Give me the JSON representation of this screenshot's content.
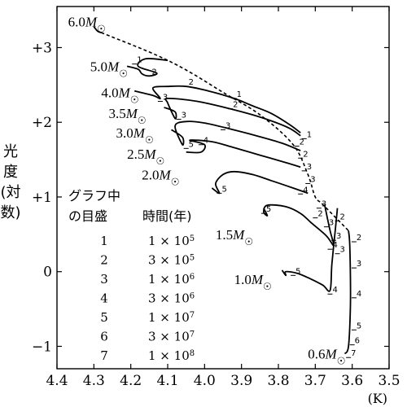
{
  "chart_data": {
    "type": "line",
    "title": "",
    "xlabel": "(K)",
    "ylabel": [
      "光",
      "度",
      "(対",
      "数)"
    ],
    "x_axis": {
      "scale": "log temperature, reversed",
      "range": [
        4.4,
        3.5
      ],
      "ticks": [
        4.4,
        4.3,
        4.2,
        4.1,
        4.0,
        3.9,
        3.8,
        3.7,
        3.6,
        3.5
      ],
      "tick_labels": [
        "4.4",
        "4.3",
        "4.2",
        "4.1",
        "4.0",
        "3.9",
        "3.8",
        "3.7",
        "3.6",
        "3.5"
      ]
    },
    "y_axis": {
      "range": [
        -1.3,
        3.55
      ],
      "ticks": [
        3,
        2,
        1,
        0,
        -1
      ],
      "tick_labels": [
        "+3",
        "+2",
        "+1",
        "0",
        "−1"
      ]
    },
    "grid": false,
    "series": [
      {
        "name": "6.0M☉",
        "label_base": "6.0",
        "label_pos": [
          4.37,
          3.35
        ],
        "values": [
          [
            4.3,
            3.28
          ],
          [
            4.29,
            3.22
          ],
          [
            4.28,
            3.2
          ]
        ]
      },
      {
        "name": "5.0M☉",
        "label_base": "5.0",
        "label_pos": [
          4.31,
          2.75
        ],
        "values": [
          [
            4.21,
            2.75
          ],
          [
            4.18,
            2.71
          ],
          [
            4.17,
            2.65
          ],
          [
            4.15,
            2.62
          ],
          [
            4.13,
            2.66
          ],
          [
            4.18,
            2.75
          ],
          [
            4.16,
            2.85
          ],
          [
            4.1,
            2.83
          ]
        ]
      },
      {
        "name": "4.0M☉",
        "label_base": "4.0",
        "label_pos": [
          4.28,
          2.4
        ],
        "values": [
          [
            4.19,
            2.42
          ],
          [
            4.14,
            2.36
          ],
          [
            4.12,
            2.32
          ],
          [
            4.14,
            2.46
          ],
          [
            4.1,
            2.48
          ],
          [
            4.05,
            2.48
          ],
          [
            3.99,
            2.42
          ],
          [
            3.92,
            2.32
          ],
          [
            3.87,
            2.22
          ],
          [
            3.82,
            2.12
          ],
          [
            3.77,
            1.97
          ],
          [
            3.74,
            1.86
          ]
        ]
      },
      {
        "name": "3.5M☉",
        "label_base": "3.5",
        "label_pos": [
          4.26,
          2.12
        ],
        "values": [
          [
            4.11,
            2.2
          ],
          [
            4.08,
            2.14
          ],
          [
            4.08,
            2.05
          ],
          [
            4.1,
            2.26
          ],
          [
            4.1,
            2.32
          ],
          [
            4.02,
            2.28
          ],
          [
            3.93,
            2.18
          ],
          [
            3.87,
            2.1
          ],
          [
            3.82,
            2.02
          ],
          [
            3.77,
            1.92
          ],
          [
            3.74,
            1.82
          ]
        ]
      },
      {
        "name": "3.0M☉",
        "label_base": "3.0",
        "label_pos": [
          4.24,
          1.86
        ],
        "values": [
          [
            4.09,
            1.9
          ],
          [
            4.06,
            1.8
          ],
          [
            4.06,
            1.7
          ],
          [
            4.08,
            1.95
          ],
          [
            4.05,
            2.01
          ],
          [
            4.0,
            1.99
          ],
          [
            3.93,
            1.91
          ],
          [
            3.86,
            1.82
          ],
          [
            3.79,
            1.72
          ],
          [
            3.74,
            1.62
          ]
        ]
      },
      {
        "name": "2.5M☉",
        "label_base": "2.5",
        "label_pos": [
          4.21,
          1.58
        ],
        "values": [
          [
            4.05,
            1.6
          ],
          [
            4.01,
            1.6
          ],
          [
            4.0,
            1.7
          ],
          [
            4.04,
            1.76
          ],
          [
            3.98,
            1.74
          ],
          [
            3.92,
            1.66
          ],
          [
            3.85,
            1.56
          ],
          [
            3.78,
            1.46
          ],
          [
            3.74,
            1.4
          ]
        ]
      },
      {
        "name": "2.0M☉",
        "label_base": "2.0",
        "label_pos": [
          4.17,
          1.3
        ],
        "values": [
          [
            3.98,
            1.12
          ],
          [
            3.96,
            1.05
          ],
          [
            3.97,
            1.18
          ],
          [
            3.95,
            1.3
          ],
          [
            3.92,
            1.34
          ],
          [
            3.87,
            1.3
          ],
          [
            3.82,
            1.22
          ],
          [
            3.76,
            1.12
          ],
          [
            3.72,
            1.05
          ]
        ]
      },
      {
        "name": "1.5M☉",
        "label_base": "1.5",
        "label_pos": [
          3.97,
          0.5
        ],
        "values": [
          [
            3.84,
            0.85
          ],
          [
            3.83,
            0.75
          ],
          [
            3.84,
            0.8
          ],
          [
            3.83,
            0.89
          ],
          [
            3.78,
            0.87
          ],
          [
            3.74,
            0.78
          ],
          [
            3.71,
            0.65
          ],
          [
            3.67,
            0.48
          ],
          [
            3.65,
            0.35
          ],
          [
            3.66,
            0.55
          ],
          [
            3.675,
            0.9
          ]
        ]
      },
      {
        "name": "1.0M☉",
        "label_base": "1.0",
        "label_pos": [
          3.92,
          -0.1
        ],
        "values": [
          [
            3.79,
            0.02
          ],
          [
            3.78,
            -0.05
          ],
          [
            3.78,
            0.0
          ],
          [
            3.75,
            -0.02
          ],
          [
            3.72,
            -0.08
          ],
          [
            3.68,
            -0.18
          ],
          [
            3.66,
            -0.25
          ],
          [
            3.655,
            0.1
          ],
          [
            3.645,
            0.6
          ],
          [
            3.64,
            0.85
          ]
        ]
      },
      {
        "name": "0.6M☉",
        "label_base": "0.6",
        "label_pos": [
          3.72,
          -1.1
        ],
        "values": [
          [
            3.62,
            -1.1
          ],
          [
            3.61,
            -1.0
          ],
          [
            3.605,
            -0.5
          ],
          [
            3.605,
            0.0
          ],
          [
            3.607,
            0.4
          ],
          [
            3.61,
            0.55
          ]
        ]
      }
    ],
    "dashed_envelope": [
      [
        4.28,
        3.2
      ],
      [
        4.14,
        2.92
      ],
      [
        4.05,
        2.7
      ],
      [
        3.95,
        2.4
      ],
      [
        3.85,
        2.1
      ],
      [
        3.76,
        1.7
      ],
      [
        3.72,
        1.3
      ],
      [
        3.7,
        1.0
      ],
      [
        3.68,
        0.9
      ],
      [
        3.61,
        0.55
      ]
    ],
    "time_marks": [
      {
        "label": "1",
        "x": 4.19,
        "y": 2.78
      },
      {
        "label": "2",
        "x": 4.15,
        "y": 2.62
      },
      {
        "label": "2",
        "x": 4.05,
        "y": 2.48
      },
      {
        "label": "1",
        "x": 3.92,
        "y": 2.32
      },
      {
        "label": "3",
        "x": 4.12,
        "y": 2.28
      },
      {
        "label": "3",
        "x": 4.07,
        "y": 2.04
      },
      {
        "label": "2",
        "x": 3.93,
        "y": 2.18
      },
      {
        "label": "3",
        "x": 3.95,
        "y": 1.9
      },
      {
        "label": "5",
        "x": 4.05,
        "y": 1.65
      },
      {
        "label": "4",
        "x": 4.01,
        "y": 1.7
      },
      {
        "label": "5",
        "x": 3.96,
        "y": 1.05
      },
      {
        "label": "1",
        "x": 3.73,
        "y": 1.78
      },
      {
        "label": "2",
        "x": 3.75,
        "y": 1.68
      },
      {
        "label": "2",
        "x": 3.74,
        "y": 1.52
      },
      {
        "label": "3",
        "x": 3.73,
        "y": 1.35
      },
      {
        "label": "3",
        "x": 3.72,
        "y": 1.18
      },
      {
        "label": "4",
        "x": 3.74,
        "y": 1.04
      },
      {
        "label": "3",
        "x": 3.69,
        "y": 0.85
      },
      {
        "label": "2",
        "x": 3.7,
        "y": 0.72
      },
      {
        "label": "3",
        "x": 3.67,
        "y": 0.6
      },
      {
        "label": "2",
        "x": 3.64,
        "y": 0.68
      },
      {
        "label": "4",
        "x": 3.66,
        "y": 0.3
      },
      {
        "label": "3",
        "x": 3.65,
        "y": 0.42
      },
      {
        "label": "5",
        "x": 3.84,
        "y": 0.78
      },
      {
        "label": "5",
        "x": 3.76,
        "y": -0.05
      },
      {
        "label": "4",
        "x": 3.66,
        "y": -0.3
      },
      {
        "label": "3",
        "x": 3.64,
        "y": 0.24
      },
      {
        "label": "2",
        "x": 3.595,
        "y": 0.4
      },
      {
        "label": "3",
        "x": 3.595,
        "y": 0.05
      },
      {
        "label": "4",
        "x": 3.595,
        "y": -0.35
      },
      {
        "label": "5",
        "x": 3.595,
        "y": -0.78
      },
      {
        "label": "6",
        "x": 3.6,
        "y": -0.98
      },
      {
        "label": "7",
        "x": 3.61,
        "y": -1.15
      }
    ],
    "legend": {
      "header": [
        "グラフ中",
        "の目盛",
        "時間(年)"
      ],
      "rows": [
        {
          "mark": "1",
          "time_base": "1",
          "time_exp": "5"
        },
        {
          "mark": "2",
          "time_base": "3",
          "time_exp": "5"
        },
        {
          "mark": "3",
          "time_base": "1",
          "time_exp": "6"
        },
        {
          "mark": "4",
          "time_base": "3",
          "time_exp": "6"
        },
        {
          "mark": "5",
          "time_base": "1",
          "time_exp": "7"
        },
        {
          "mark": "6",
          "time_base": "3",
          "time_exp": "7"
        },
        {
          "mark": "7",
          "time_base": "1",
          "time_exp": "8"
        }
      ]
    }
  }
}
